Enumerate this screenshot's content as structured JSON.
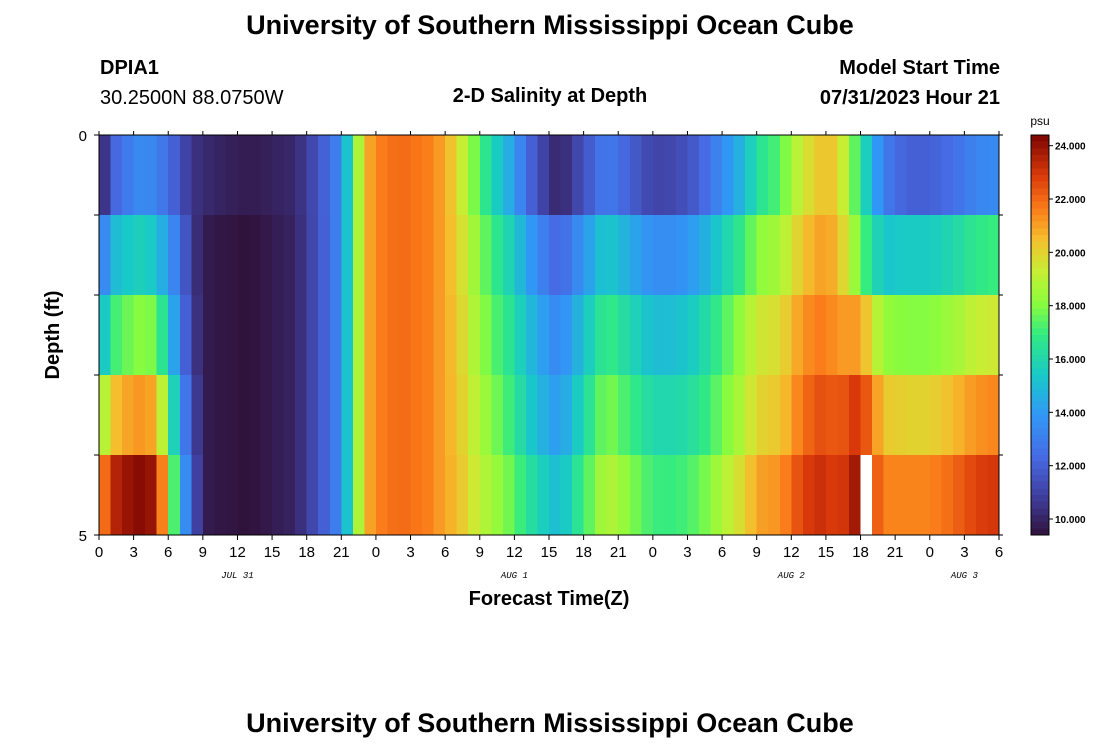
{
  "header": {
    "title": "University of Southern Mississippi Ocean Cube",
    "station_id": "DPIA1",
    "coordinates": "30.2500N  88.0750W",
    "plot_title": "2-D Salinity at Depth",
    "model_start_label": "Model Start Time",
    "model_start_value": "07/31/2023 Hour 21"
  },
  "footer": {
    "title": "University of Southern Mississippi Ocean Cube"
  },
  "chart_data": {
    "type": "heatmap",
    "title": "2-D Salinity at Depth",
    "xlabel": "Forecast Time(Z)",
    "ylabel": "Depth (ft)",
    "ylim": [
      0,
      5
    ],
    "y_tick_labels": [
      "0",
      "5"
    ],
    "x_tick_labels": [
      "0",
      "3",
      "6",
      "9",
      "12",
      "15",
      "18",
      "21",
      "0",
      "3",
      "6",
      "9",
      "12",
      "15",
      "18",
      "21",
      "0",
      "3",
      "6",
      "9",
      "12",
      "15",
      "18",
      "21",
      "0",
      "3",
      "6"
    ],
    "date_labels": [
      {
        "label": "JUL 31",
        "hour_index": 12
      },
      {
        "label": "AUG 1",
        "hour_index": 36
      },
      {
        "label": "AUG 2",
        "hour_index": 60
      },
      {
        "label": "AUG 3",
        "hour_index": 75
      }
    ],
    "hours_total": 78,
    "depth_layers": 5,
    "colorbar": {
      "unit": "psu",
      "min": 9.4,
      "max": 24.4,
      "tick_labels": [
        "24.000",
        "22.000",
        "20.000",
        "18.000",
        "16.000",
        "14.000",
        "12.000",
        "10.000"
      ],
      "tick_values": [
        24,
        22,
        20,
        18,
        16,
        14,
        12,
        10
      ]
    },
    "layer_top_profile": {
      "hours": [
        0,
        0.5,
        1,
        2,
        4,
        6,
        8,
        10,
        13,
        17,
        19,
        21,
        22,
        23,
        24,
        26,
        29,
        31,
        32,
        34,
        36,
        37,
        38,
        39,
        40,
        42,
        44,
        45,
        47,
        48,
        50,
        52,
        54,
        56,
        57,
        59,
        60,
        61,
        62,
        63,
        64,
        65,
        66,
        68,
        70,
        72,
        74,
        76,
        78
      ],
      "values": [
        9.6,
        10.5,
        11.8,
        12.5,
        13.2,
        12.0,
        10.0,
        9.6,
        9.4,
        10.0,
        11.5,
        13.5,
        17.0,
        20.5,
        21.5,
        22.0,
        21.5,
        20.0,
        18.5,
        16.0,
        14.0,
        12.5,
        11.5,
        10.5,
        10.0,
        11.5,
        13.0,
        12.5,
        11.5,
        11.0,
        11.2,
        12.0,
        13.5,
        15.0,
        16.2,
        17.0,
        18.0,
        19.0,
        19.5,
        20.0,
        19.5,
        18.0,
        16.0,
        12.5,
        11.5,
        11.5,
        12.0,
        13.0,
        13.5
      ]
    },
    "layer_offsets": [
      {
        "hours": [
          0,
          5,
          8,
          20,
          24,
          30,
          34,
          38,
          44,
          48,
          56,
          60,
          64,
          66,
          70,
          74,
          78
        ],
        "values": [
          0,
          0.5,
          0.5,
          0,
          0,
          0,
          0,
          0,
          0,
          0,
          0,
          0.5,
          0.5,
          0.5,
          0.5,
          0.5,
          0
        ]
      },
      {
        "hours": [
          0,
          5,
          7,
          9,
          20,
          24,
          30,
          34,
          38,
          44,
          48,
          56,
          60,
          64,
          66,
          70,
          74,
          78
        ],
        "values": [
          3.0,
          2.5,
          1.5,
          0,
          0,
          0,
          0,
          1.0,
          2.0,
          2.5,
          2.5,
          2.0,
          1.5,
          1.0,
          1.5,
          4.0,
          4.0,
          3.5
        ]
      },
      {
        "hours": [
          0,
          5,
          7,
          9,
          20,
          24,
          30,
          34,
          38,
          44,
          48,
          56,
          60,
          64,
          66,
          70,
          74,
          78
        ],
        "values": [
          5.0,
          5.0,
          2.0,
          0,
          0,
          0,
          0,
          1.5,
          3.0,
          4.0,
          4.0,
          3.5,
          2.5,
          1.5,
          5.0,
          6.5,
          6.5,
          6.0
        ]
      },
      {
        "hours": [
          0,
          5,
          7,
          9,
          20,
          24,
          30,
          34,
          38,
          44,
          48,
          56,
          60,
          64,
          66,
          70,
          74,
          78
        ],
        "values": [
          8.5,
          8.0,
          3.0,
          0,
          0,
          0,
          0,
          2.0,
          3.5,
          5.0,
          5.0,
          4.0,
          3.0,
          2.5,
          7.0,
          8.5,
          8.5,
          8.0
        ]
      },
      {
        "hours": [
          0,
          5,
          7,
          9,
          20,
          24,
          30,
          34,
          38,
          44,
          48,
          56,
          60,
          64,
          66,
          70,
          74,
          78
        ],
        "values": [
          11.5,
          11.0,
          4.0,
          0,
          0,
          0,
          0,
          2.5,
          4.5,
          6.0,
          6.0,
          5.0,
          4.0,
          3.0,
          8.0,
          10.0,
          10.0,
          9.5
        ]
      }
    ],
    "missing_cells": [
      {
        "hour_index": 66,
        "layer_index": 4
      }
    ]
  }
}
